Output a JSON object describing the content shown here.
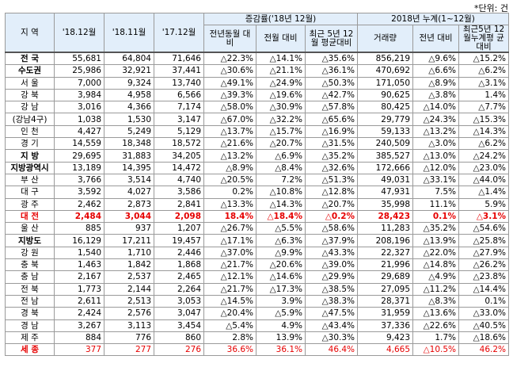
{
  "unit_note": "*단위: 건",
  "headers": {
    "region": "지 역",
    "c1": "'18.12월",
    "c2": "'18.11월",
    "c3": "'17.12월",
    "group1": "증감률('18년 12월)",
    "group1_sub": [
      "전년동월 대비",
      "전월 대비",
      "최근 5년 12월 평균대비"
    ],
    "group2": "2018년 누계(1~12월)",
    "group2_sub": [
      "거래량",
      "전년 대비",
      "최근5년 12월누계평 균대비"
    ]
  },
  "rows": [
    {
      "label": "전 국",
      "v": [
        "55,681",
        "64,804",
        "71,646",
        "△22.3%",
        "△14.1%",
        "△35.6%",
        "856,219",
        "△9.6%",
        "△15.2%"
      ],
      "style": "bold"
    },
    {
      "label": "수도권",
      "v": [
        "25,986",
        "32,921",
        "37,441",
        "△30.6%",
        "△21.1%",
        "△36.1%",
        "470,692",
        "△6.6%",
        "△6.2%"
      ],
      "style": "bold"
    },
    {
      "label": "서 울",
      "v": [
        "7,000",
        "9,324",
        "13,740",
        "△49.1%",
        "△24.9%",
        "△50.3%",
        "171,050",
        "△8.9%",
        "△3.1%"
      ],
      "style": ""
    },
    {
      "label": "강 북",
      "v": [
        "3,984",
        "4,958",
        "6,566",
        "△39.3%",
        "△19.6%",
        "△42.7%",
        "90,625",
        "△3.8%",
        "1.4%"
      ],
      "style": ""
    },
    {
      "label": "강 남",
      "v": [
        "3,016",
        "4,366",
        "7,174",
        "△58.0%",
        "△30.9%",
        "△57.8%",
        "80,425",
        "△14.0%",
        "△7.7%"
      ],
      "style": ""
    },
    {
      "label": "(강남4구)",
      "v": [
        "1,038",
        "1,530",
        "3,147",
        "△67.0%",
        "△32.2%",
        "△65.6%",
        "29,779",
        "△24.3%",
        "△15.3%"
      ],
      "style": ""
    },
    {
      "label": "인 천",
      "v": [
        "4,427",
        "5,249",
        "5,129",
        "△13.7%",
        "△15.7%",
        "△16.9%",
        "59,133",
        "△13.2%",
        "△14.3%"
      ],
      "style": ""
    },
    {
      "label": "경 기",
      "v": [
        "14,559",
        "18,348",
        "18,572",
        "△21.6%",
        "△20.7%",
        "△31.5%",
        "240,509",
        "△3.0%",
        "△6.2%"
      ],
      "style": ""
    },
    {
      "label": "지 방",
      "v": [
        "29,695",
        "31,883",
        "34,205",
        "△13.2%",
        "△6.9%",
        "△35.2%",
        "385,527",
        "△13.0%",
        "△24.2%"
      ],
      "style": "bold"
    },
    {
      "label": "지방광역시",
      "v": [
        "13,189",
        "14,395",
        "14,472",
        "△8.9%",
        "△8.4%",
        "△32.6%",
        "172,666",
        "△12.0%",
        "△23.0%"
      ],
      "style": "bold"
    },
    {
      "label": "부 산",
      "v": [
        "3,766",
        "3,514",
        "4,740",
        "△20.5%",
        "7.2%",
        "△51.3%",
        "49,031",
        "△33.1%",
        "△44.0%"
      ],
      "style": ""
    },
    {
      "label": "대 구",
      "v": [
        "3,592",
        "4,027",
        "3,586",
        "0.2%",
        "△10.8%",
        "△12.8%",
        "47,931",
        "7.5%",
        "△1.4%"
      ],
      "style": ""
    },
    {
      "label": "광 주",
      "v": [
        "2,462",
        "2,873",
        "2,841",
        "△13.3%",
        "△14.3%",
        "△20.7%",
        "35,998",
        "11.1%",
        "5.9%"
      ],
      "style": ""
    },
    {
      "label": "대 전",
      "v": [
        "2,484",
        "3,044",
        "2,098",
        "18.4%",
        "△18.4%",
        "△0.2%",
        "28,423",
        "0.1%",
        "△3.1%"
      ],
      "style": "red"
    },
    {
      "label": "울 산",
      "v": [
        "885",
        "937",
        "1,207",
        "△26.7%",
        "△5.5%",
        "△58.6%",
        "11,283",
        "△35.2%",
        "△54.6%"
      ],
      "style": ""
    },
    {
      "label": "지방도",
      "v": [
        "16,129",
        "17,211",
        "19,457",
        "△17.1%",
        "△6.3%",
        "△37.9%",
        "208,196",
        "△13.9%",
        "△25.8%"
      ],
      "style": "bold"
    },
    {
      "label": "강 원",
      "v": [
        "1,540",
        "1,710",
        "2,446",
        "△37.0%",
        "△9.9%",
        "△43.3%",
        "22,327",
        "△22.0%",
        "△27.9%"
      ],
      "style": ""
    },
    {
      "label": "충 북",
      "v": [
        "1,463",
        "1,842",
        "1,868",
        "△21.7%",
        "△20.6%",
        "△39.0%",
        "21,996",
        "△14.8%",
        "△26.2%"
      ],
      "style": ""
    },
    {
      "label": "충 남",
      "v": [
        "2,167",
        "2,537",
        "2,465",
        "△12.1%",
        "△14.6%",
        "△29.9%",
        "29,689",
        "△4.9%",
        "△23.8%"
      ],
      "style": ""
    },
    {
      "label": "전 북",
      "v": [
        "1,773",
        "2,144",
        "2,264",
        "△21.7%",
        "△17.3%",
        "△38.5%",
        "27,095",
        "△11.2%",
        "△14.4%"
      ],
      "style": ""
    },
    {
      "label": "전 남",
      "v": [
        "2,611",
        "2,513",
        "3,053",
        "△14.5%",
        "3.9%",
        "△38.3%",
        "28,371",
        "△8.3%",
        "0.1%"
      ],
      "style": ""
    },
    {
      "label": "경 북",
      "v": [
        "2,424",
        "2,576",
        "3,047",
        "△20.4%",
        "△5.9%",
        "△47.5%",
        "31,959",
        "△13.6%",
        "△33.0%"
      ],
      "style": ""
    },
    {
      "label": "경 남",
      "v": [
        "3,267",
        "3,113",
        "3,454",
        "△5.4%",
        "4.9%",
        "△43.4%",
        "37,336",
        "△22.6%",
        "△40.5%"
      ],
      "style": ""
    },
    {
      "label": "제 주",
      "v": [
        "884",
        "776",
        "860",
        "2.8%",
        "13.9%",
        "△30.3%",
        "9,423",
        "1.7%",
        "△18.6%"
      ],
      "style": ""
    },
    {
      "label": "세 종",
      "v": [
        "377",
        "277",
        "276",
        "36.6%",
        "36.1%",
        "46.4%",
        "4,665",
        "△10.5%",
        "46.2%"
      ],
      "style": "sejong"
    }
  ]
}
